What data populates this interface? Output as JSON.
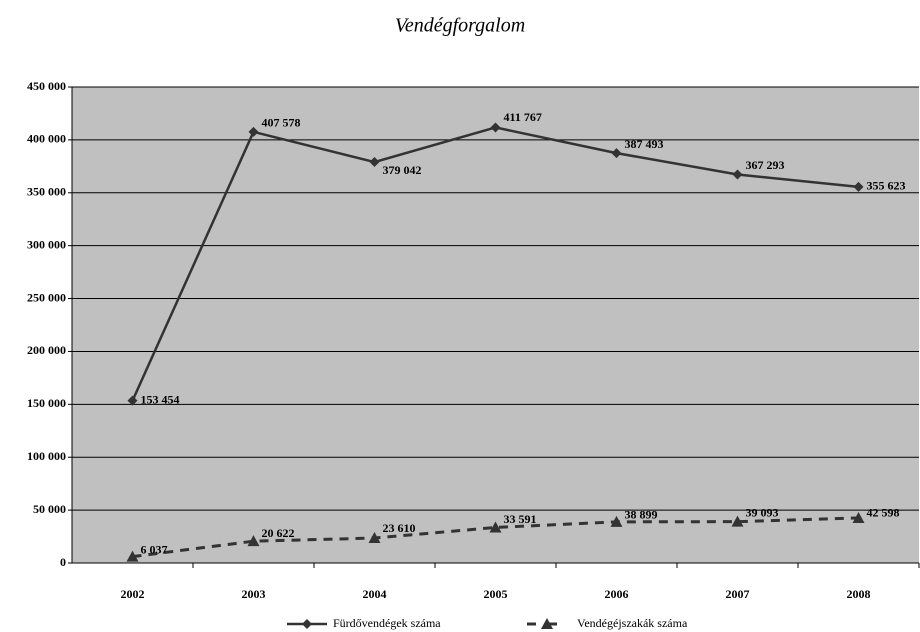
{
  "chart_data": {
    "type": "line",
    "title": "Vendégforgalom",
    "categories": [
      "2002",
      "2003",
      "2004",
      "2005",
      "2006",
      "2007",
      "2008"
    ],
    "series": [
      {
        "name": "Fürdővendégek száma",
        "color": "#333333",
        "marker": "diamond",
        "dash": false,
        "values": [
          153454,
          407578,
          379042,
          411767,
          387493,
          367293,
          355623
        ],
        "value_labels": [
          "153 454",
          "407 578",
          "379 042",
          "411 767",
          "387 493",
          "367 293",
          "355 623"
        ]
      },
      {
        "name": "Vendégéjszakák száma",
        "color": "#333333",
        "marker": "triangle",
        "dash": true,
        "values": [
          6037,
          20622,
          23610,
          33591,
          38899,
          39093,
          42598
        ],
        "value_labels": [
          "6 037",
          "20 622",
          "23 610",
          "33 591",
          "38 899",
          "39 093",
          "42 598"
        ]
      }
    ],
    "ylim": [
      0,
      450000
    ],
    "yticks": [
      0,
      {
        "value": 50000,
        "label": "50 000"
      },
      {
        "value": 100000,
        "label": "100 000"
      },
      {
        "value": 150000,
        "label": "150 000"
      },
      {
        "value": 200000,
        "label": "200 000"
      },
      {
        "value": 250000,
        "label": "250 000"
      },
      {
        "value": 300000,
        "label": "300 000"
      },
      {
        "value": 350000,
        "label": "350 000"
      },
      {
        "value": 400000,
        "label": "400 000"
      },
      {
        "value": 450000,
        "label": "450 000"
      }
    ],
    "grid": true,
    "plot_background": "#c0c0c0",
    "legend": "bottom"
  }
}
